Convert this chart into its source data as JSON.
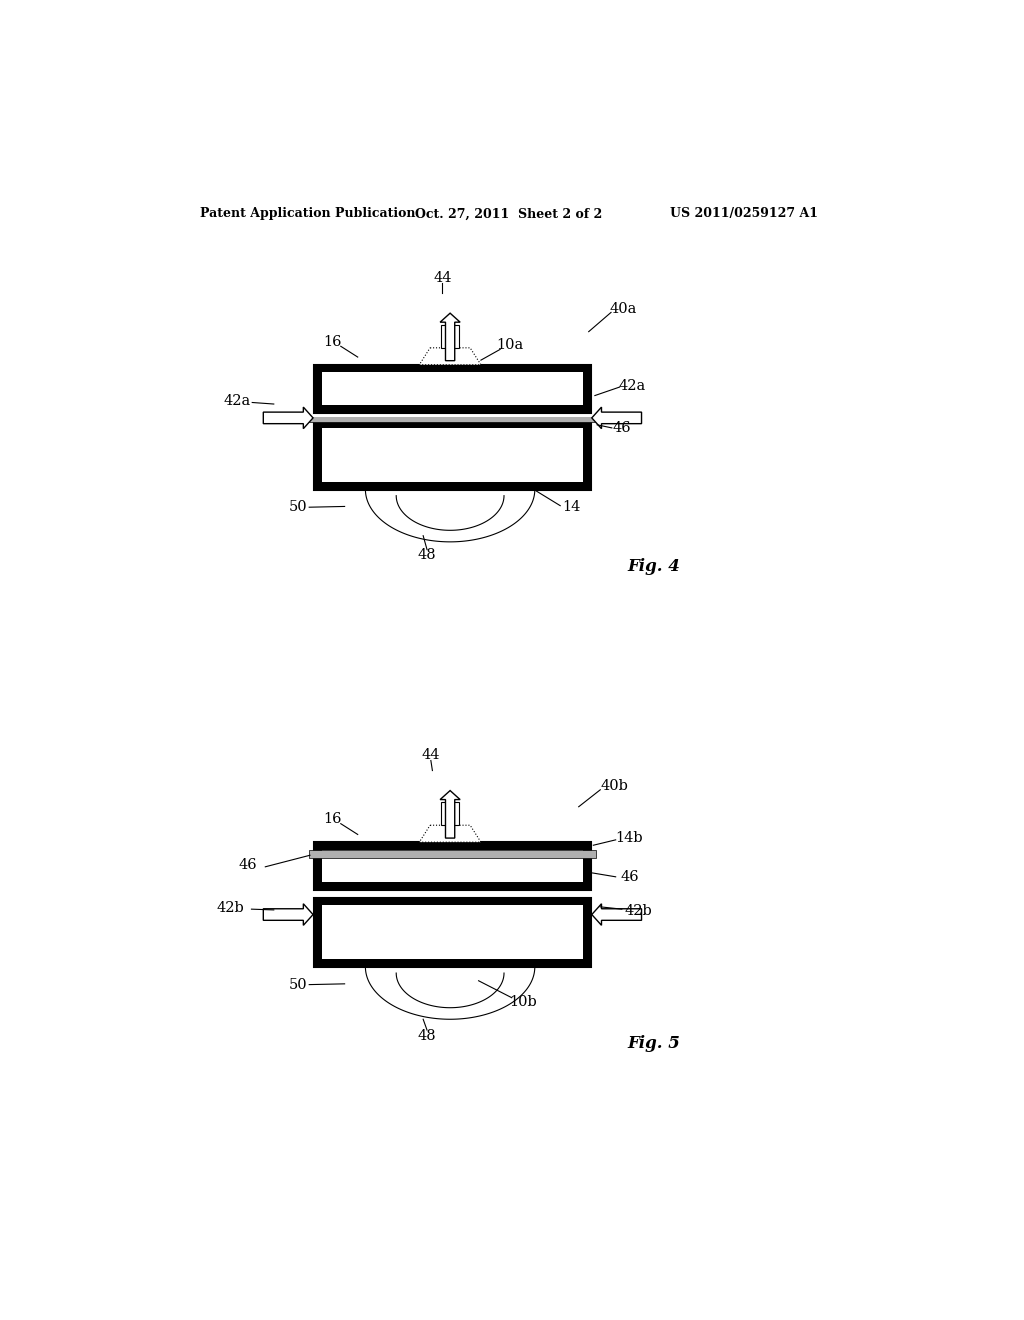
{
  "bg_color": "#ffffff",
  "header_left": "Patent Application Publication",
  "header_mid": "Oct. 27, 2011  Sheet 2 of 2",
  "header_right": "US 2011/0259127 A1",
  "fig4_label": "Fig. 4",
  "fig5_label": "Fig. 5",
  "line_color": "#000000",
  "black_fill": "#000000",
  "white_fill": "#ffffff",
  "gray_fill": "#d0d0d0",
  "label_fontsize": 10.5
}
